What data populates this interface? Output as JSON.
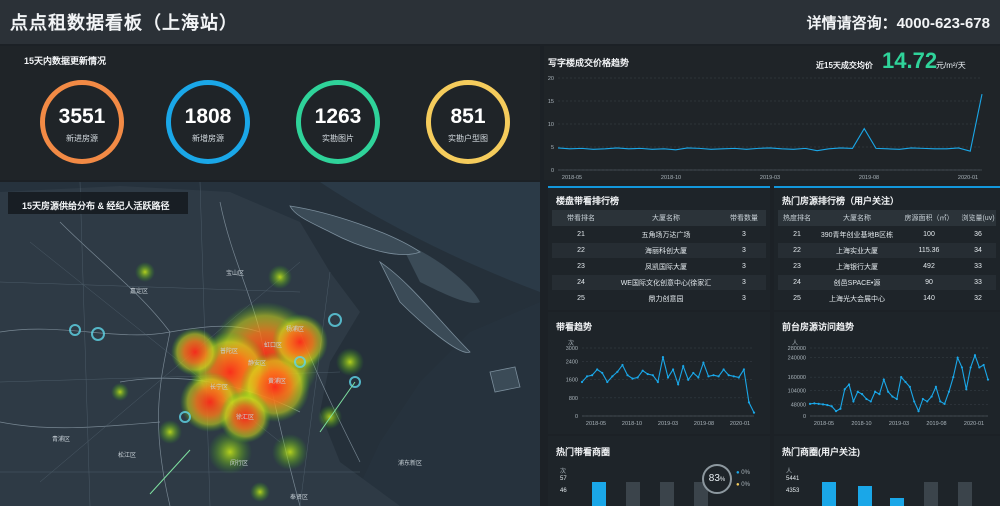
{
  "header": {
    "title": "点点租数据看板（上海站）",
    "contact": "详情请咨询：4000-623-678"
  },
  "stats": {
    "title": "15天内数据更新情况",
    "items": [
      {
        "value": "3551",
        "label": "新进房源",
        "color": "#f28a45"
      },
      {
        "value": "1808",
        "label": "新增房源",
        "color": "#1aa7e8"
      },
      {
        "value": "1263",
        "label": "实勘图片",
        "color": "#2fd39a"
      },
      {
        "value": "851",
        "label": "实勘户型图",
        "color": "#f5cc5c"
      }
    ]
  },
  "price": {
    "title": "写字楼成交价格趋势",
    "avg_label": "近15天成交均价",
    "avg_value": "14.72",
    "avg_unit": "元/m²/天",
    "chart_data": {
      "type": "line",
      "x_ticks": [
        "2018-05",
        "2018-10",
        "2019-03",
        "2019-08",
        "2020-01"
      ],
      "y_ticks": [
        0,
        5,
        10,
        15,
        20
      ],
      "ylim": [
        0,
        20
      ],
      "values": [
        4.8,
        4.6,
        4.7,
        4.5,
        4.6,
        4.8,
        4.6,
        4.7,
        4.5,
        4.6,
        4.4,
        4.8,
        4.7,
        4.5,
        4.6,
        4.7,
        4.5,
        4.7,
        4.8,
        4.6,
        4.5,
        4.7,
        4.2,
        4.6,
        4.8,
        4.7,
        9.0,
        4.7,
        4.6,
        4.5,
        4.8,
        4.7,
        4.6,
        4.6,
        4.8,
        4.1,
        16.5
      ],
      "color": "#1aa7e8"
    }
  },
  "map": {
    "title": "15天房源供给分布 & 经纪人活跃路径",
    "labels": [
      "宝山区",
      "嘉定区",
      "杨浦区",
      "虹口区",
      "普陀区",
      "长宁区",
      "静安区",
      "黄浦区",
      "徐汇区",
      "闵行区",
      "奉贤区",
      "浦东新区",
      "松江区",
      "青浦区"
    ]
  },
  "table1": {
    "title": "楼盘带看排行榜",
    "headers": [
      "带看排名",
      "大厦名称",
      "带看数量"
    ],
    "rows": [
      [
        "21",
        "五角场万达广场",
        "3"
      ],
      [
        "22",
        "海丽科创大厦",
        "3"
      ],
      [
        "23",
        "凤凯国际大厦",
        "3"
      ],
      [
        "24",
        "WE国际文化创意中心(徐家汇",
        "3"
      ],
      [
        "25",
        "鼎力创意园",
        "3"
      ]
    ]
  },
  "table2": {
    "title": "热门房源排行榜（用户关注）",
    "headers": [
      "热度排名",
      "大厦名称",
      "房源面积（㎡）",
      "浏览量(uv)"
    ],
    "rows": [
      [
        "21",
        "390青年创业基地B区栋",
        "100",
        "36"
      ],
      [
        "22",
        "上海实业大厦",
        "115.36",
        "34"
      ],
      [
        "23",
        "上海银行大厦",
        "492",
        "33"
      ],
      [
        "24",
        "创邑SPACE•源",
        "90",
        "33"
      ],
      [
        "25",
        "上海光大会展中心",
        "140",
        "32"
      ]
    ]
  },
  "visit_trend": {
    "title": "带看趋势",
    "unit": "次",
    "chart_data": {
      "type": "line",
      "x_ticks": [
        "2018-05",
        "2018-10",
        "2019-03",
        "2019-08",
        "2020-01"
      ],
      "y_ticks": [
        0,
        800,
        1600,
        2400,
        3000
      ],
      "ylim": [
        0,
        3000
      ],
      "values": [
        1500,
        1750,
        1800,
        2050,
        1900,
        1500,
        1750,
        1950,
        2250,
        1800,
        1650,
        1700,
        2000,
        1850,
        1800,
        1500,
        2600,
        1700,
        2050,
        1400,
        2200,
        1600,
        1900,
        1700,
        2350,
        1750,
        1800,
        1750,
        2050,
        1800,
        1750,
        1700,
        2050,
        600,
        150
      ],
      "color": "#1aa7e8"
    }
  },
  "platform_trend": {
    "title": "前台房源访问趋势",
    "unit": "人",
    "chart_data": {
      "type": "line",
      "x_ticks": [
        "2018-05",
        "2018-10",
        "2019-03",
        "2019-08",
        "2020-01"
      ],
      "y_ticks": [
        0,
        48000,
        104000,
        160000,
        240000,
        280000
      ],
      "ylim": [
        0,
        280000
      ],
      "values": [
        50000,
        52000,
        50000,
        48000,
        45000,
        40000,
        20000,
        30000,
        110000,
        130000,
        60000,
        100000,
        90000,
        70000,
        60000,
        100000,
        90000,
        150000,
        100000,
        80000,
        70000,
        160000,
        140000,
        120000,
        60000,
        20000,
        70000,
        60000,
        80000,
        120000,
        60000,
        50000,
        100000,
        160000,
        240000,
        200000,
        110000,
        200000,
        250000,
        200000,
        210000,
        150000
      ],
      "color": "#1aa7e8"
    }
  },
  "hot_visit": {
    "title": "热门带看商圈",
    "unit": "次",
    "y_ticks": [
      "57",
      "46"
    ],
    "gauge": "83",
    "gauge_unit": "%",
    "legend": [
      "0%",
      "0%"
    ]
  },
  "hot_focus": {
    "title": "热门商圈(用户关注)",
    "unit": "人",
    "y_ticks": [
      "5441",
      "4353"
    ]
  }
}
